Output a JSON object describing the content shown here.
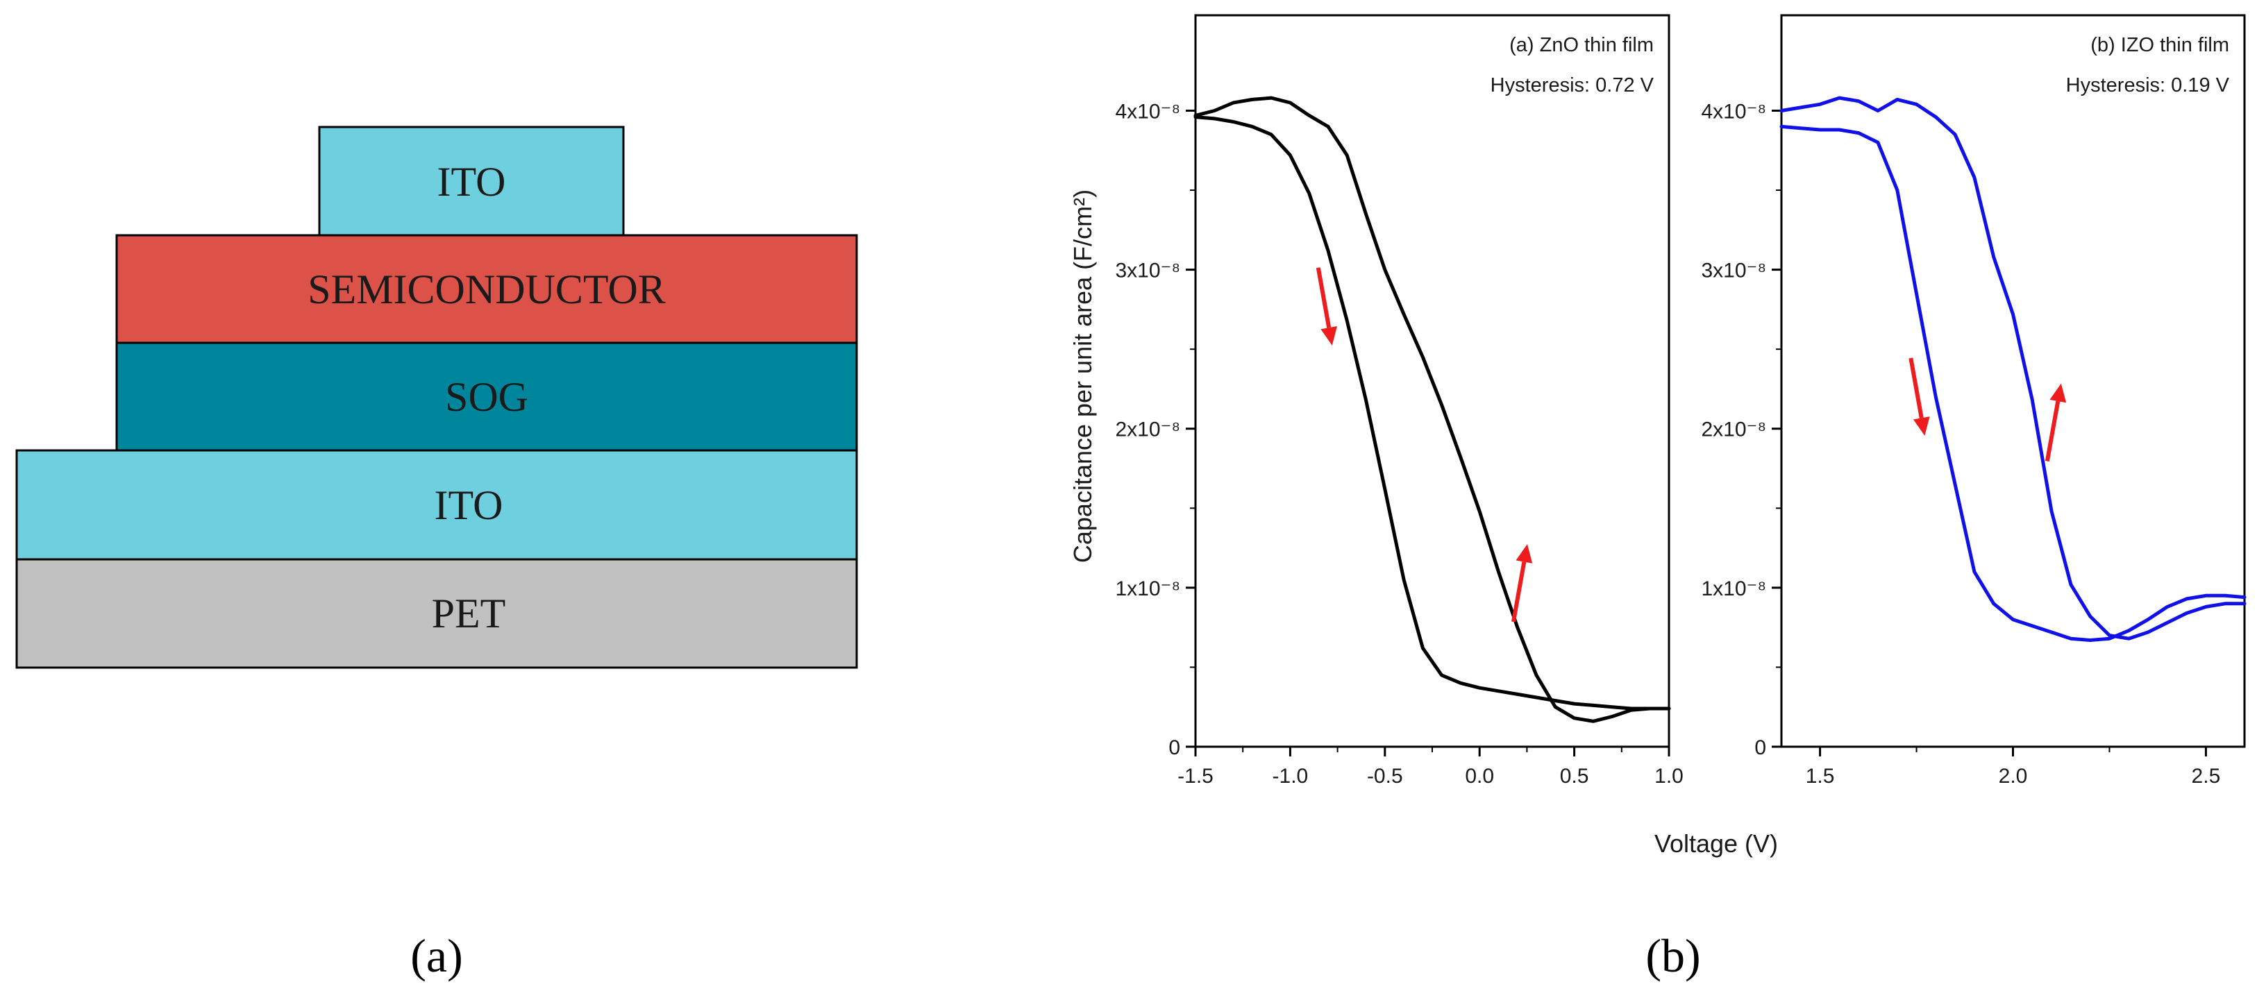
{
  "figure": {
    "panel_a_label": "(a)",
    "panel_b_label": "(b)"
  },
  "stack": {
    "layers": [
      {
        "label": "ITO",
        "color": "#6ecfdf"
      },
      {
        "label": "SEMICONDUCTOR",
        "color": "#dc5248"
      },
      {
        "label": "SOG",
        "color": "#00869c"
      },
      {
        "label": "ITO",
        "color": "#6ecfdf"
      },
      {
        "label": "PET",
        "color": "#c0c0c0"
      }
    ]
  },
  "chart_data": [
    {
      "type": "line",
      "title": "(a) ZnO thin film",
      "annotation": "Hysteresis: 0.72 V",
      "xlabel": "Voltage (V)",
      "ylabel": "Capacitance per unit area (F/cm²)",
      "xlim": [
        -1.5,
        1.0
      ],
      "ylim": [
        0,
        4.6e-08
      ],
      "x_ticks": [
        -1.5,
        -1.0,
        -0.5,
        0.0,
        0.5,
        1.0
      ],
      "x_tick_labels": [
        "-1.5",
        "-1.0",
        "-0.5",
        "0.0",
        "0.5",
        "1.0"
      ],
      "y_ticks": [
        0,
        1e-08,
        2e-08,
        3e-08,
        4e-08
      ],
      "y_tick_labels": [
        "0",
        "1x10⁻⁸",
        "2x10⁻⁸",
        "3x10⁻⁸",
        "4x10⁻⁸"
      ],
      "color": "#000000",
      "arrow_color": "#ee1c1c",
      "series": [
        {
          "name": "forward sweep",
          "x": [
            -1.5,
            -1.4,
            -1.3,
            -1.2,
            -1.1,
            -1.0,
            -0.9,
            -0.8,
            -0.7,
            -0.6,
            -0.5,
            -0.4,
            -0.3,
            -0.2,
            -0.1,
            0.0,
            0.1,
            0.2,
            0.3,
            0.4,
            0.5,
            0.6,
            0.7,
            0.8,
            0.9,
            1.0
          ],
          "values": [
            3.97e-08,
            4e-08,
            4.05e-08,
            4.07e-08,
            4.08e-08,
            4.05e-08,
            3.97e-08,
            3.9e-08,
            3.72e-08,
            3.35e-08,
            3e-08,
            2.72e-08,
            2.45e-08,
            2.15e-08,
            1.82e-08,
            1.48e-08,
            1.1e-08,
            7.5e-09,
            4.5e-09,
            2.5e-09,
            1.8e-09,
            1.6e-09,
            1.9e-09,
            2.3e-09,
            2.4e-09,
            2.4e-09
          ]
        },
        {
          "name": "reverse sweep",
          "x": [
            1.0,
            0.9,
            0.8,
            0.7,
            0.6,
            0.5,
            0.4,
            0.3,
            0.2,
            0.1,
            0.0,
            -0.1,
            -0.2,
            -0.3,
            -0.4,
            -0.5,
            -0.6,
            -0.7,
            -0.8,
            -0.9,
            -1.0,
            -1.1,
            -1.2,
            -1.3,
            -1.4,
            -1.5
          ],
          "values": [
            2.4e-09,
            2.4e-09,
            2.4e-09,
            2.5e-09,
            2.6e-09,
            2.7e-09,
            2.9e-09,
            3.1e-09,
            3.3e-09,
            3.5e-09,
            3.7e-09,
            4e-09,
            4.5e-09,
            6.2e-09,
            1.05e-08,
            1.62e-08,
            2.18e-08,
            2.68e-08,
            3.12e-08,
            3.48e-08,
            3.72e-08,
            3.85e-08,
            3.9e-08,
            3.93e-08,
            3.95e-08,
            3.96e-08
          ]
        }
      ]
    },
    {
      "type": "line",
      "title": "(b) IZO thin film",
      "annotation": "Hysteresis: 0.19 V",
      "xlabel": "Voltage (V)",
      "ylabel": "",
      "xlim": [
        1.4,
        2.6
      ],
      "ylim": [
        0,
        4.6e-08
      ],
      "x_ticks": [
        1.5,
        2.0,
        2.5
      ],
      "x_tick_labels": [
        "1.5",
        "2.0",
        "2.5"
      ],
      "y_ticks": [
        0,
        1e-08,
        2e-08,
        3e-08,
        4e-08
      ],
      "y_tick_labels": [
        "0",
        "1x10⁻⁸",
        "2x10⁻⁸",
        "3x10⁻⁸",
        "4x10⁻⁸"
      ],
      "color": "#1010e8",
      "arrow_color": "#ee1c1c",
      "series": [
        {
          "name": "forward sweep",
          "x": [
            1.4,
            1.45,
            1.5,
            1.55,
            1.6,
            1.65,
            1.7,
            1.75,
            1.8,
            1.85,
            1.9,
            1.95,
            2.0,
            2.05,
            2.1,
            2.15,
            2.2,
            2.25,
            2.3,
            2.35,
            2.4,
            2.45,
            2.5,
            2.55,
            2.6
          ],
          "values": [
            4e-08,
            4.02e-08,
            4.04e-08,
            4.08e-08,
            4.06e-08,
            4e-08,
            4.07e-08,
            4.04e-08,
            3.96e-08,
            3.85e-08,
            3.58e-08,
            3.08e-08,
            2.72e-08,
            2.18e-08,
            1.48e-08,
            1.02e-08,
            8.2e-09,
            7e-09,
            6.8e-09,
            7.2e-09,
            7.8e-09,
            8.4e-09,
            8.8e-09,
            9e-09,
            9e-09
          ]
        },
        {
          "name": "reverse sweep",
          "x": [
            2.6,
            2.55,
            2.5,
            2.45,
            2.4,
            2.35,
            2.3,
            2.25,
            2.2,
            2.15,
            2.1,
            2.05,
            2.0,
            1.95,
            1.9,
            1.85,
            1.8,
            1.75,
            1.7,
            1.65,
            1.6,
            1.55,
            1.5,
            1.45,
            1.4
          ],
          "values": [
            9.4e-09,
            9.5e-09,
            9.5e-09,
            9.3e-09,
            8.8e-09,
            8e-09,
            7.3e-09,
            6.8e-09,
            6.7e-09,
            6.8e-09,
            7.2e-09,
            7.6e-09,
            8e-09,
            9e-09,
            1.1e-08,
            1.65e-08,
            2.2e-08,
            2.85e-08,
            3.5e-08,
            3.8e-08,
            3.86e-08,
            3.88e-08,
            3.88e-08,
            3.89e-08,
            3.9e-08
          ]
        }
      ]
    }
  ]
}
